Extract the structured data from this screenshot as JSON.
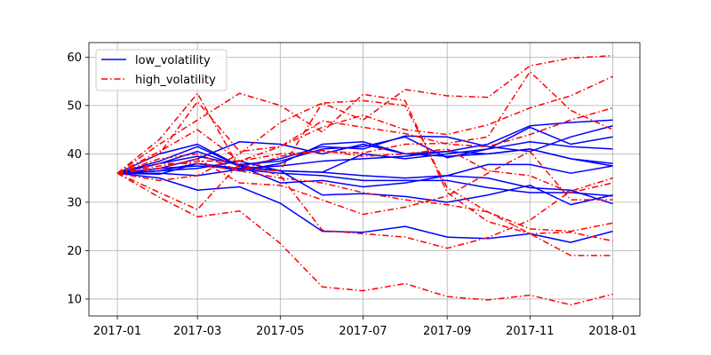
{
  "chart_data": {
    "type": "line",
    "x": [
      "2017-01",
      "2017-02",
      "2017-03",
      "2017-04",
      "2017-05",
      "2017-06",
      "2017-07",
      "2017-08",
      "2017-09",
      "2017-10",
      "2017-11",
      "2017-12",
      "2018-01"
    ],
    "x_tick_labels": [
      "2017-01",
      "2017-03",
      "2017-05",
      "2017-07",
      "2017-09",
      "2017-11",
      "2018-01"
    ],
    "y_ticks": [
      10,
      20,
      30,
      40,
      50,
      60
    ],
    "ylim": [
      6.5,
      63
    ],
    "xlim": [
      "2016-12-11",
      "2018-01-21"
    ],
    "grid": true,
    "legend_position": "top-left",
    "legend": [
      {
        "label": "low_volatility",
        "color": "#0000ff",
        "style": "solid"
      },
      {
        "label": "high_volatility",
        "color": "#ff0000",
        "style": "dashdot"
      }
    ],
    "series": [
      {
        "group": "low_volatility",
        "values": [
          36,
          38.5,
          41.5,
          37.5,
          36.5,
          36.2,
          40,
          39,
          40,
          41,
          45.5,
          42,
          43.5
        ]
      },
      {
        "group": "low_volatility",
        "values": [
          36,
          36.5,
          38,
          36.5,
          38,
          42,
          42.5,
          40,
          40.5,
          40,
          41,
          39,
          38
        ]
      },
      {
        "group": "low_volatility",
        "values": [
          36,
          36,
          35.5,
          36.8,
          36,
          35.5,
          34.5,
          34.5,
          34.5,
          33,
          32,
          32,
          31.3
        ]
      },
      {
        "group": "low_volatility",
        "values": [
          36,
          35,
          32.5,
          33.2,
          29.8,
          24,
          23.8,
          25,
          22.8,
          22.5,
          23.5,
          21.7,
          24
        ]
      },
      {
        "group": "low_volatility",
        "values": [
          36,
          40,
          42,
          37.5,
          39,
          41.5,
          41,
          43.7,
          43.5,
          41.5,
          40.5,
          43.5,
          45.8
        ]
      },
      {
        "group": "low_volatility",
        "values": [
          36,
          36.5,
          37,
          38.5,
          36.5,
          31.5,
          31.8,
          31.2,
          30,
          31.5,
          33.5,
          29.5,
          31.5
        ]
      },
      {
        "group": "low_volatility",
        "values": [
          36,
          35.8,
          38,
          37,
          36.5,
          36.2,
          35.5,
          35,
          35.5,
          37.8,
          37.8,
          36,
          37.5
        ]
      },
      {
        "group": "low_volatility",
        "values": [
          36,
          38,
          39.5,
          37.8,
          38.5,
          41,
          41.5,
          43.5,
          39.2,
          41,
          42.5,
          41.5,
          41
        ]
      },
      {
        "group": "low_volatility",
        "values": [
          36,
          37,
          39,
          42.5,
          42,
          40,
          42,
          40,
          39.5,
          40,
          41,
          39,
          37.5
        ]
      },
      {
        "group": "low_volatility",
        "values": [
          36,
          38,
          40.5,
          37.5,
          34,
          34.5,
          33.2,
          34,
          35.5,
          35,
          33,
          32.5,
          29.7
        ]
      },
      {
        "group": "low_volatility",
        "values": [
          36,
          37,
          37.5,
          37,
          37.5,
          38.5,
          39,
          39.5,
          40.5,
          42,
          45.8,
          46.5,
          47
        ]
      },
      {
        "group": "high_volatility",
        "values": [
          36,
          43,
          52.5,
          37,
          36.5,
          50.5,
          51,
          50,
          33,
          28,
          23.5,
          19,
          19
        ]
      },
      {
        "group": "high_volatility",
        "values": [
          36,
          42,
          47,
          52.5,
          50,
          44.5,
          52.3,
          51,
          32,
          26,
          23.5,
          23.8,
          22
        ]
      },
      {
        "group": "high_volatility",
        "values": [
          36,
          31,
          27,
          28.2,
          21.5,
          12.5,
          11.7,
          13.2,
          10.5,
          9.8,
          10.8,
          8.8,
          11
        ]
      },
      {
        "group": "high_volatility",
        "values": [
          36,
          34.5,
          35.5,
          40,
          46.5,
          50.5,
          47,
          53.3,
          52,
          51.7,
          58.2,
          59.8,
          60.3
        ]
      },
      {
        "group": "high_volatility",
        "values": [
          36,
          32,
          28.5,
          38,
          35.5,
          24.2,
          23.5,
          22.8,
          20.5,
          22.7,
          26.3,
          32.3,
          35
        ]
      },
      {
        "group": "high_volatility",
        "values": [
          36,
          37,
          39,
          34,
          33.5,
          30.5,
          27.5,
          29,
          31.3,
          36,
          40.5,
          30.5,
          30.5
        ]
      },
      {
        "group": "high_volatility",
        "values": [
          36,
          40.5,
          45,
          38.5,
          40,
          40.5,
          40.2,
          42,
          42.2,
          43.5,
          57,
          49,
          45
        ]
      },
      {
        "group": "high_volatility",
        "values": [
          36,
          39,
          40,
          36.5,
          35,
          34,
          32,
          30.5,
          29.5,
          28,
          24.5,
          24,
          25.7
        ]
      },
      {
        "group": "high_volatility",
        "values": [
          36,
          37.5,
          38.5,
          38.5,
          41.5,
          45.5,
          48,
          45,
          44,
          46,
          49.5,
          52,
          56
        ]
      },
      {
        "group": "high_volatility",
        "values": [
          36,
          40,
          50.8,
          40.5,
          41.5,
          46.8,
          45.5,
          44.2,
          42,
          41.5,
          44,
          47,
          49.5
        ]
      },
      {
        "group": "high_volatility",
        "values": [
          36,
          38,
          38,
          36.5,
          39.5,
          40.7,
          39.5,
          40,
          41,
          36.5,
          35.5,
          32,
          34
        ]
      }
    ]
  }
}
